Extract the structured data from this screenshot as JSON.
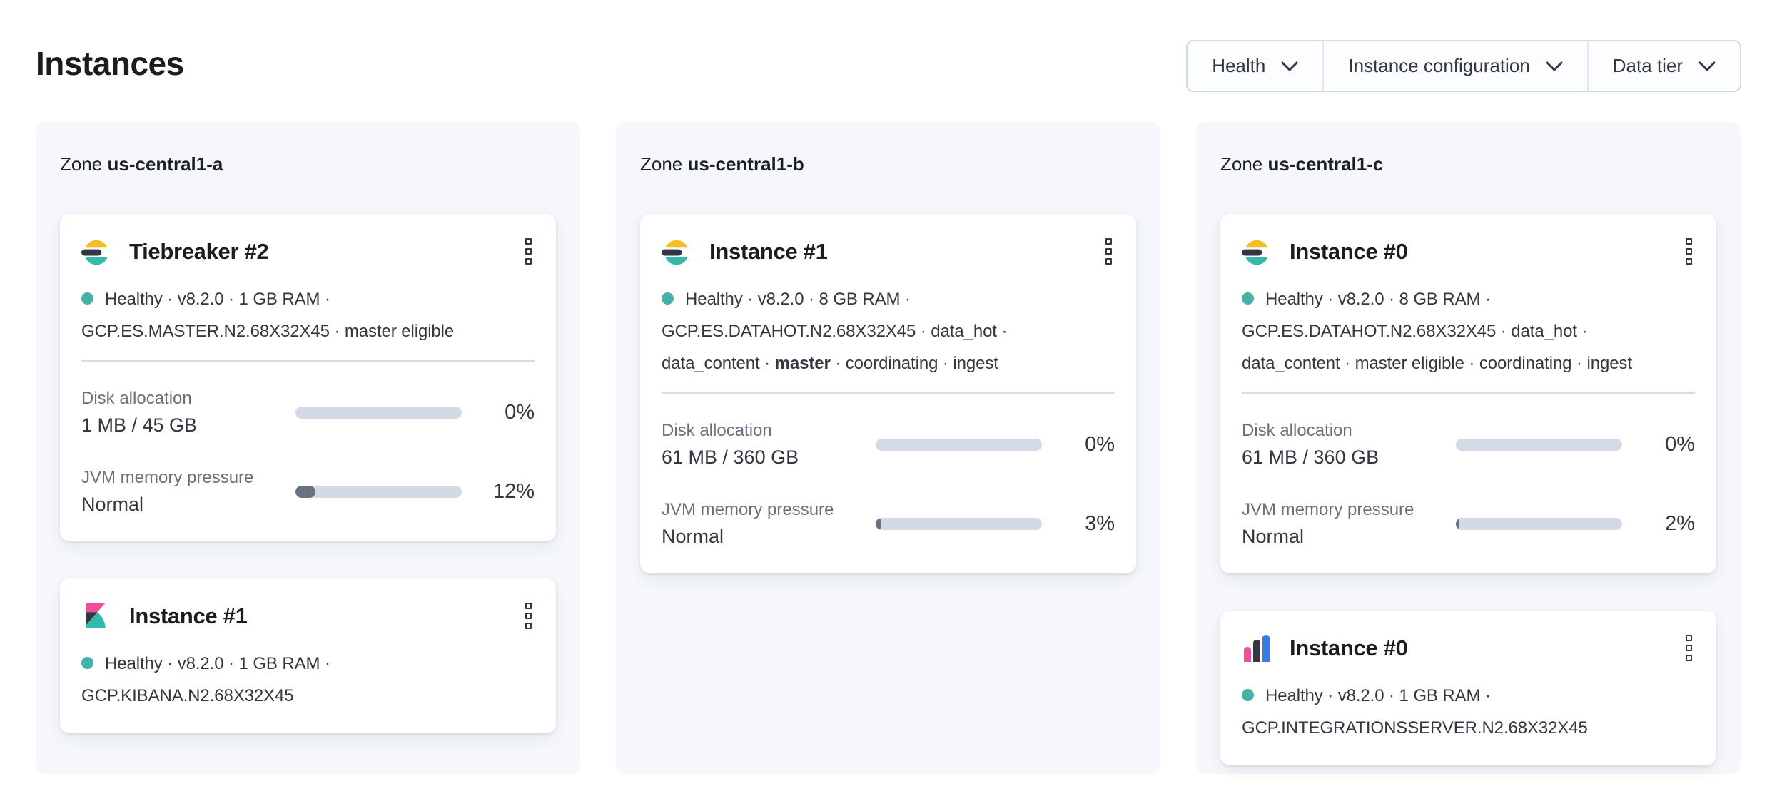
{
  "page": {
    "title": "Instances"
  },
  "filters": {
    "items": [
      {
        "label": "Health"
      },
      {
        "label": "Instance configuration"
      },
      {
        "label": "Data tier"
      }
    ]
  },
  "zones": [
    {
      "prefix": "Zone",
      "name": "us-central1-a",
      "cards": [
        {
          "product": "elasticsearch",
          "title": "Tiebreaker #2",
          "health": "Healthy",
          "meta": [
            [
              {
                "text": "Healthy · v8.2.0 · 1 GB RAM ·"
              }
            ],
            [
              {
                "text": "GCP.ES.MASTER.N2.68X32X45 · master eligible"
              }
            ]
          ],
          "metrics": [
            {
              "label": "Disk allocation",
              "value": "1 MB / 45 GB",
              "percent": "0%"
            },
            {
              "label": "JVM memory pressure",
              "value": "Normal",
              "percent": "12%"
            }
          ]
        },
        {
          "product": "kibana",
          "title": "Instance #1",
          "health": "Healthy",
          "meta": [
            [
              {
                "text": "Healthy · v8.2.0 · 1 GB RAM ·"
              }
            ],
            [
              {
                "text": "GCP.KIBANA.N2.68X32X45"
              }
            ]
          ]
        }
      ]
    },
    {
      "prefix": "Zone",
      "name": "us-central1-b",
      "cards": [
        {
          "product": "elasticsearch",
          "title": "Instance #1",
          "health": "Healthy",
          "meta": [
            [
              {
                "text": "Healthy · v8.2.0 · 8 GB RAM ·"
              }
            ],
            [
              {
                "text": "GCP.ES.DATAHOT.N2.68X32X45 · data_hot ·"
              }
            ],
            [
              {
                "text": "data_content · "
              },
              {
                "text": "master",
                "bold": true
              },
              {
                "text": " · coordinating · ingest"
              }
            ]
          ],
          "metrics": [
            {
              "label": "Disk allocation",
              "value": "61 MB / 360 GB",
              "percent": "0%"
            },
            {
              "label": "JVM memory pressure",
              "value": "Normal",
              "percent": "3%"
            }
          ]
        }
      ]
    },
    {
      "prefix": "Zone",
      "name": "us-central1-c",
      "cards": [
        {
          "product": "elasticsearch",
          "title": "Instance #0",
          "health": "Healthy",
          "meta": [
            [
              {
                "text": "Healthy · v8.2.0 · 8 GB RAM ·"
              }
            ],
            [
              {
                "text": "GCP.ES.DATAHOT.N2.68X32X45 · data_hot ·"
              }
            ],
            [
              {
                "text": "data_content · master eligible · coordinating · ingest"
              }
            ]
          ],
          "metrics": [
            {
              "label": "Disk allocation",
              "value": "61 MB / 360 GB",
              "percent": "0%"
            },
            {
              "label": "JVM memory pressure",
              "value": "Normal",
              "percent": "2%"
            }
          ]
        },
        {
          "product": "integrations_server",
          "title": "Instance #0",
          "health": "Healthy",
          "meta": [
            [
              {
                "text": "Healthy · v8.2.0 · 1 GB RAM ·"
              }
            ],
            [
              {
                "text": "GCP.INTEGRATIONSSERVER.N2.68X32X45"
              }
            ]
          ]
        }
      ]
    }
  ],
  "colors": {
    "health_dot": "#45b1a8",
    "bar_track": "#d3dae6",
    "bar_fill": "#6a7180",
    "panel_bg": "#f5f7fc",
    "text": "#343741",
    "subdued_text": "#69707d",
    "border": "#d3dae6",
    "brand_yellow": "#f4bd24",
    "brand_teal": "#35b9ac",
    "brand_pink": "#f04e98",
    "brand_dark": "#343741",
    "brand_blue": "#3b7ce0"
  }
}
